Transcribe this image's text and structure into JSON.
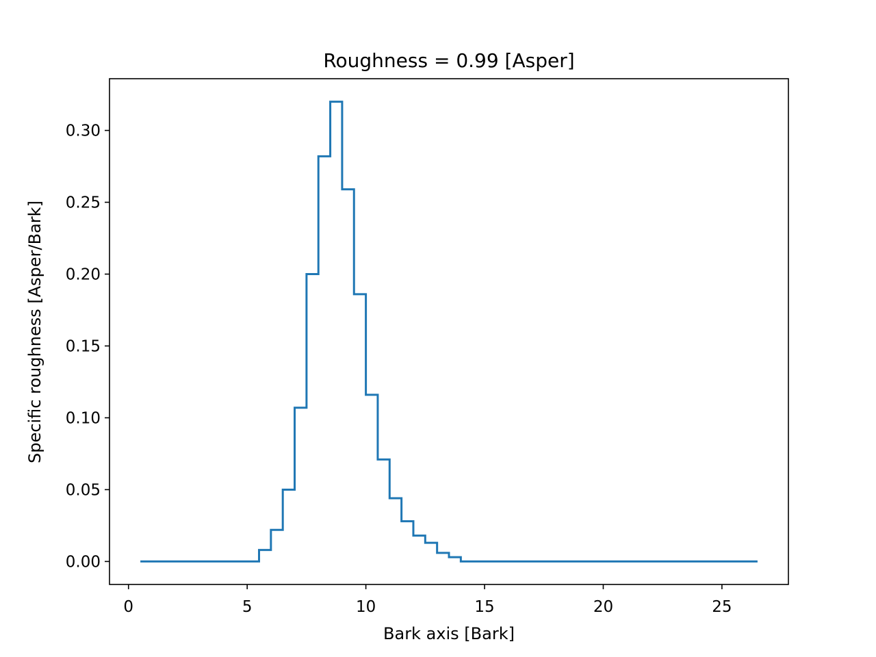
{
  "chart_data": {
    "type": "line",
    "title": "Roughness = 0.99 [Asper]",
    "xlabel": "Bark axis [Bark]",
    "ylabel": "Specific roughness [Asper/Bark]",
    "xlim": [
      -0.8,
      27.8
    ],
    "ylim": [
      -0.016,
      0.336
    ],
    "x_ticks": [
      0,
      5,
      10,
      15,
      20,
      25
    ],
    "x_tick_labels": [
      "0",
      "5",
      "10",
      "15",
      "20",
      "25"
    ],
    "y_ticks": [
      0.0,
      0.05,
      0.1,
      0.15,
      0.2,
      0.25,
      0.3
    ],
    "y_tick_labels": [
      "0.00",
      "0.05",
      "0.10",
      "0.15",
      "0.20",
      "0.25",
      "0.30"
    ],
    "grid": false,
    "series": [
      {
        "step": "post",
        "color": "#1f77b4",
        "x": [
          0.5,
          1.0,
          1.5,
          2.0,
          2.5,
          3.0,
          3.5,
          4.0,
          4.5,
          5.0,
          5.5,
          6.0,
          6.5,
          7.0,
          7.5,
          8.0,
          8.5,
          9.0,
          9.5,
          10.0,
          10.5,
          11.0,
          11.5,
          12.0,
          12.5,
          13.0,
          13.5,
          14.0,
          14.5,
          15.0,
          15.5,
          16.0,
          16.5,
          17.0,
          17.5,
          18.0,
          18.5,
          19.0,
          19.5,
          20.0,
          20.5,
          21.0,
          21.5,
          22.0,
          22.5,
          23.0,
          23.5,
          24.0,
          24.5,
          25.0,
          25.5,
          26.0,
          26.5
        ],
        "y": [
          0.0,
          0.0,
          0.0,
          0.0,
          0.0,
          0.0,
          0.0,
          0.0,
          0.0,
          0.0,
          0.008,
          0.022,
          0.05,
          0.107,
          0.2,
          0.282,
          0.32,
          0.259,
          0.186,
          0.116,
          0.071,
          0.044,
          0.028,
          0.018,
          0.013,
          0.006,
          0.003,
          0.0,
          0.0,
          0.0,
          0.0,
          0.0,
          0.0,
          0.0,
          0.0,
          0.0,
          0.0,
          0.0,
          0.0,
          0.0,
          0.0,
          0.0,
          0.0,
          0.0,
          0.0,
          0.0,
          0.0,
          0.0,
          0.0,
          0.0,
          0.0,
          0.0,
          0.0
        ]
      }
    ]
  }
}
